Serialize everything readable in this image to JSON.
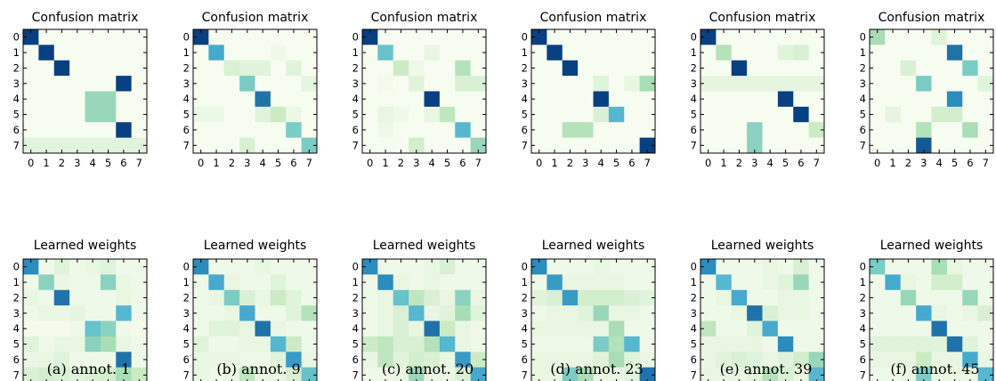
{
  "chart_data": {
    "type": "heatmap",
    "tick_labels": [
      "0",
      "1",
      "2",
      "3",
      "4",
      "5",
      "6",
      "7"
    ],
    "row_titles": [
      "Confusion matrix",
      "Learned weights"
    ],
    "colormap": {
      "low": "#f7fcf0",
      "mid": "#7bccc4",
      "high": "#084081",
      "range": [
        0,
        1
      ]
    },
    "panels": [
      {
        "caption": "(a) annot. 1",
        "confusion_matrix": [
          [
            1.0,
            0,
            0,
            0,
            0,
            0,
            0,
            0
          ],
          [
            0,
            1.0,
            0,
            0,
            0,
            0,
            0,
            0
          ],
          [
            0,
            0,
            1.0,
            0,
            0,
            0,
            0,
            0
          ],
          [
            0,
            0,
            0,
            0,
            0,
            0,
            1.0,
            0
          ],
          [
            0,
            0,
            0,
            0,
            0.5,
            0.5,
            0,
            0
          ],
          [
            0,
            0,
            0,
            0,
            0.5,
            0.5,
            0,
            0
          ],
          [
            0,
            0,
            0,
            0,
            0,
            0,
            1.0,
            0
          ],
          [
            0.13,
            0.13,
            0.13,
            0.13,
            0.13,
            0.13,
            0.13,
            0.13
          ]
        ],
        "learned_weights": [
          [
            0.85,
            0.05,
            0.15,
            0.05,
            0.1,
            0.15,
            0.05,
            0.05
          ],
          [
            0.05,
            0.55,
            0.08,
            0.05,
            0.05,
            0.55,
            0.08,
            0.05
          ],
          [
            0.1,
            0.05,
            0.9,
            0.05,
            0.05,
            0.05,
            0.1,
            0.05
          ],
          [
            0.05,
            0.1,
            0.08,
            0.12,
            0.05,
            0.05,
            0.7,
            0.05
          ],
          [
            0.02,
            0.02,
            0.02,
            0.05,
            0.65,
            0.55,
            0.05,
            0.02
          ],
          [
            0.15,
            0.05,
            0.1,
            0.1,
            0.55,
            0.45,
            0.1,
            0.05
          ],
          [
            0.08,
            0.1,
            0.15,
            0.05,
            0.05,
            0.05,
            0.9,
            0.05
          ],
          [
            0.2,
            0.25,
            0.2,
            0.15,
            0.2,
            0.25,
            0.45,
            0.3
          ]
        ]
      },
      {
        "caption": "(b) annot. 9",
        "confusion_matrix": [
          [
            1.0,
            0,
            0,
            0,
            0,
            0,
            0,
            0
          ],
          [
            0,
            0.75,
            0,
            0,
            0,
            0.05,
            0,
            0
          ],
          [
            0,
            0,
            0.2,
            0.15,
            0.15,
            0,
            0.15,
            0
          ],
          [
            0,
            0,
            0,
            0.6,
            0,
            0,
            0,
            0.12
          ],
          [
            0,
            0,
            0,
            0,
            0.9,
            0,
            0,
            0
          ],
          [
            0.07,
            0.07,
            0,
            0,
            0.15,
            0.3,
            0.07,
            0
          ],
          [
            0,
            0,
            0,
            0,
            0,
            0,
            0.6,
            0
          ],
          [
            0,
            0,
            0,
            0.2,
            0,
            0,
            0,
            0.6
          ]
        ],
        "learned_weights": [
          [
            0.85,
            0.05,
            0.05,
            0.05,
            0.1,
            0.05,
            0.05,
            0.05
          ],
          [
            0.05,
            0.75,
            0.1,
            0.05,
            0.05,
            0.15,
            0.05,
            0.05
          ],
          [
            0.05,
            0.1,
            0.6,
            0.2,
            0.1,
            0.3,
            0.15,
            0.05
          ],
          [
            0.05,
            0.05,
            0.1,
            0.75,
            0.05,
            0.05,
            0.15,
            0.4
          ],
          [
            0.05,
            0.15,
            0.15,
            0.1,
            0.9,
            0.1,
            0.05,
            0.05
          ],
          [
            0.15,
            0.05,
            0.05,
            0.1,
            0.1,
            0.7,
            0.3,
            0.05
          ],
          [
            0.1,
            0.1,
            0.1,
            0.05,
            0.05,
            0.15,
            0.8,
            0.1
          ],
          [
            0.1,
            0.05,
            0.1,
            0.35,
            0.1,
            0.1,
            0.2,
            0.65
          ]
        ]
      },
      {
        "caption": "(c) annot. 20",
        "confusion_matrix": [
          [
            1.0,
            0,
            0,
            0,
            0,
            0,
            0,
            0
          ],
          [
            0,
            0.65,
            0,
            0,
            0.1,
            0,
            0,
            0
          ],
          [
            0,
            0,
            0.3,
            0.05,
            0,
            0,
            0.4,
            0
          ],
          [
            0,
            0.03,
            0,
            0.15,
            0,
            0,
            0.2,
            0.2
          ],
          [
            0,
            0,
            0,
            0,
            1.0,
            0,
            0,
            0
          ],
          [
            0,
            0.1,
            0.05,
            0,
            0.1,
            0.35,
            0,
            0
          ],
          [
            0,
            0.05,
            0,
            0,
            0,
            0,
            0.7,
            0
          ],
          [
            0,
            0,
            0,
            0.25,
            0,
            0,
            0,
            0.5
          ]
        ],
        "learned_weights": [
          [
            0.85,
            0.05,
            0.05,
            0.05,
            0.1,
            0.2,
            0.05,
            0.05
          ],
          [
            0.05,
            0.85,
            0.1,
            0.05,
            0.1,
            0.05,
            0.05,
            0.05
          ],
          [
            0.05,
            0.1,
            0.65,
            0.35,
            0.2,
            0.1,
            0.55,
            0.1
          ],
          [
            0.05,
            0.1,
            0.2,
            0.7,
            0.1,
            0.15,
            0.45,
            0.15
          ],
          [
            0.05,
            0.1,
            0.2,
            0.1,
            0.9,
            0.3,
            0.1,
            0.05
          ],
          [
            0.3,
            0.35,
            0.2,
            0.2,
            0.4,
            0.7,
            0.1,
            0.05
          ],
          [
            0.1,
            0.35,
            0.15,
            0.25,
            0.2,
            0.1,
            0.8,
            0.3
          ],
          [
            0.05,
            0.05,
            0.1,
            0.5,
            0.1,
            0.1,
            0.2,
            0.75
          ]
        ]
      },
      {
        "caption": "(d) annot. 23",
        "confusion_matrix": [
          [
            1.0,
            0,
            0,
            0,
            0,
            0,
            0,
            0
          ],
          [
            0,
            1.0,
            0,
            0,
            0,
            0,
            0,
            0
          ],
          [
            0,
            0,
            1.0,
            0,
            0,
            0,
            0,
            0
          ],
          [
            0,
            0,
            0,
            0,
            0.15,
            0,
            0.1,
            0.45
          ],
          [
            0,
            0,
            0,
            0,
            1.0,
            0,
            0,
            0
          ],
          [
            0,
            0,
            0,
            0,
            0.2,
            0.7,
            0,
            0
          ],
          [
            0,
            0,
            0.4,
            0.4,
            0,
            0,
            0,
            0
          ],
          [
            0,
            0,
            0,
            0,
            0,
            0,
            0,
            1.0
          ]
        ],
        "learned_weights": [
          [
            0.85,
            0.05,
            0.05,
            0.05,
            0.1,
            0.05,
            0.05,
            0.05
          ],
          [
            0.05,
            0.8,
            0.1,
            0.1,
            0.1,
            0.1,
            0.05,
            0.05
          ],
          [
            0.15,
            0.2,
            0.8,
            0.25,
            0.25,
            0.25,
            0.2,
            0.15
          ],
          [
            0.05,
            0.1,
            0.1,
            0.15,
            0.5,
            0.1,
            0.1,
            0.05
          ],
          [
            0.1,
            0.1,
            0.1,
            0.1,
            0.1,
            0.45,
            0.05,
            0.05
          ],
          [
            0.05,
            0.05,
            0.05,
            0.05,
            0.6,
            0.4,
            0.7,
            0.05
          ],
          [
            0.1,
            0.1,
            0.1,
            0.1,
            0.15,
            0.45,
            0.15,
            0.1
          ],
          [
            0.1,
            0.1,
            0.6,
            0.45,
            0.1,
            0.1,
            0.15,
            0.9
          ]
        ]
      },
      {
        "caption": "(e) annot. 39",
        "confusion_matrix": [
          [
            1.0,
            0,
            0,
            0,
            0,
            0,
            0,
            0
          ],
          [
            0,
            0.4,
            0,
            0,
            0,
            0.15,
            0.2,
            0
          ],
          [
            0,
            0,
            1.0,
            0,
            0,
            0,
            0,
            0
          ],
          [
            0.12,
            0.12,
            0.12,
            0.12,
            0.12,
            0.12,
            0.12,
            0.12
          ],
          [
            0,
            0,
            0,
            0,
            0,
            1.0,
            0,
            0
          ],
          [
            0,
            0,
            0,
            0,
            0,
            0,
            1.0,
            0
          ],
          [
            0,
            0,
            0,
            0.55,
            0,
            0,
            0,
            0.3
          ],
          [
            0,
            0,
            0,
            0.55,
            0,
            0,
            0,
            0
          ]
        ],
        "learned_weights": [
          [
            0.85,
            0.05,
            0.05,
            0.05,
            0.1,
            0.05,
            0.2,
            0.05
          ],
          [
            0.05,
            0.7,
            0.05,
            0.05,
            0.1,
            0.15,
            0.5,
            0.05
          ],
          [
            0.05,
            0.1,
            0.75,
            0.05,
            0.05,
            0.1,
            0.1,
            0.05
          ],
          [
            0.05,
            0.05,
            0.1,
            0.9,
            0.2,
            0.1,
            0.1,
            0.05
          ],
          [
            0.35,
            0.05,
            0.05,
            0.15,
            0.75,
            0.05,
            0.05,
            0.05
          ],
          [
            0.1,
            0.1,
            0.1,
            0.1,
            0.05,
            0.85,
            0.05,
            0.05
          ],
          [
            0.1,
            0.15,
            0.2,
            0.15,
            0.1,
            0.15,
            0.25,
            0.5
          ],
          [
            0.1,
            0.1,
            0.1,
            0.15,
            0.4,
            0.2,
            0.1,
            0.7
          ]
        ]
      },
      {
        "caption": "(f) annot. 45",
        "confusion_matrix": [
          [
            0.45,
            0,
            0,
            0,
            0.15,
            0,
            0,
            0
          ],
          [
            0,
            0,
            0,
            0,
            0,
            0.9,
            0,
            0
          ],
          [
            0,
            0,
            0.2,
            0,
            0,
            0,
            0.6,
            0
          ],
          [
            0,
            0,
            0,
            0.6,
            0,
            0,
            0,
            0.15
          ],
          [
            0,
            0,
            0,
            0,
            0,
            0.85,
            0,
            0
          ],
          [
            0,
            0.12,
            0,
            0,
            0.25,
            0.25,
            0,
            0
          ],
          [
            0,
            0,
            0,
            0.4,
            0,
            0,
            0.45,
            0
          ],
          [
            0,
            0,
            0,
            0.95,
            0,
            0,
            0,
            0
          ]
        ],
        "learned_weights": [
          [
            0.6,
            0.05,
            0.05,
            0.05,
            0.45,
            0.1,
            0.05,
            0.05
          ],
          [
            0.05,
            0.75,
            0.1,
            0.05,
            0.25,
            0.25,
            0.05,
            0.05
          ],
          [
            0.05,
            0.05,
            0.5,
            0.05,
            0.05,
            0.05,
            0.5,
            0.05
          ],
          [
            0.05,
            0.05,
            0.05,
            0.75,
            0.1,
            0.05,
            0.1,
            0.2
          ],
          [
            0.05,
            0.05,
            0.05,
            0.05,
            0.9,
            0.05,
            0.05,
            0.05
          ],
          [
            0.15,
            0.15,
            0.15,
            0.15,
            0.15,
            0.9,
            0.15,
            0.05
          ],
          [
            0.1,
            0.1,
            0.1,
            0.3,
            0.1,
            0.1,
            0.75,
            0.1
          ],
          [
            0.05,
            0.05,
            0.1,
            0.6,
            0.1,
            0.1,
            0.1,
            0.7
          ]
        ]
      }
    ]
  }
}
